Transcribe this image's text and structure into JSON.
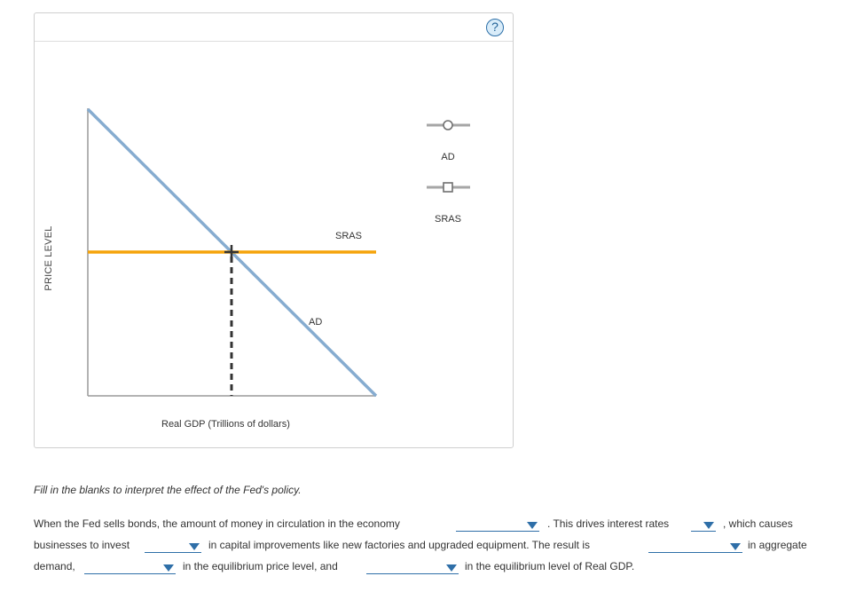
{
  "graph": {
    "ylabel": "PRICE LEVEL",
    "xlabel": "Real GDP (Trillions of dollars)",
    "curve_labels": {
      "sras": "SRAS",
      "ad": "AD"
    },
    "colors": {
      "ad": "#86acd0",
      "sras": "#f5a30a",
      "axis": "#9a9a9a",
      "equilibrium": "#333333"
    }
  },
  "legend": [
    {
      "label": "AD",
      "marker": "circle"
    },
    {
      "label": "SRAS",
      "marker": "square"
    }
  ],
  "help_label": "?",
  "instructions": "Fill in the blanks to interpret the effect of the Fed's policy.",
  "question": {
    "t1": "When the Fed sells bonds, the amount of money in circulation in the economy",
    "t2": ". This drives interest rates",
    "t3": ", which causes",
    "t4": "businesses to invest",
    "t5": "in capital improvements like new factories and upgraded equipment. The result is",
    "t6": "in aggregate",
    "t7": "demand,",
    "t8": "in the equilibrium price level, and",
    "t9": "in the equilibrium level of Real GDP."
  }
}
